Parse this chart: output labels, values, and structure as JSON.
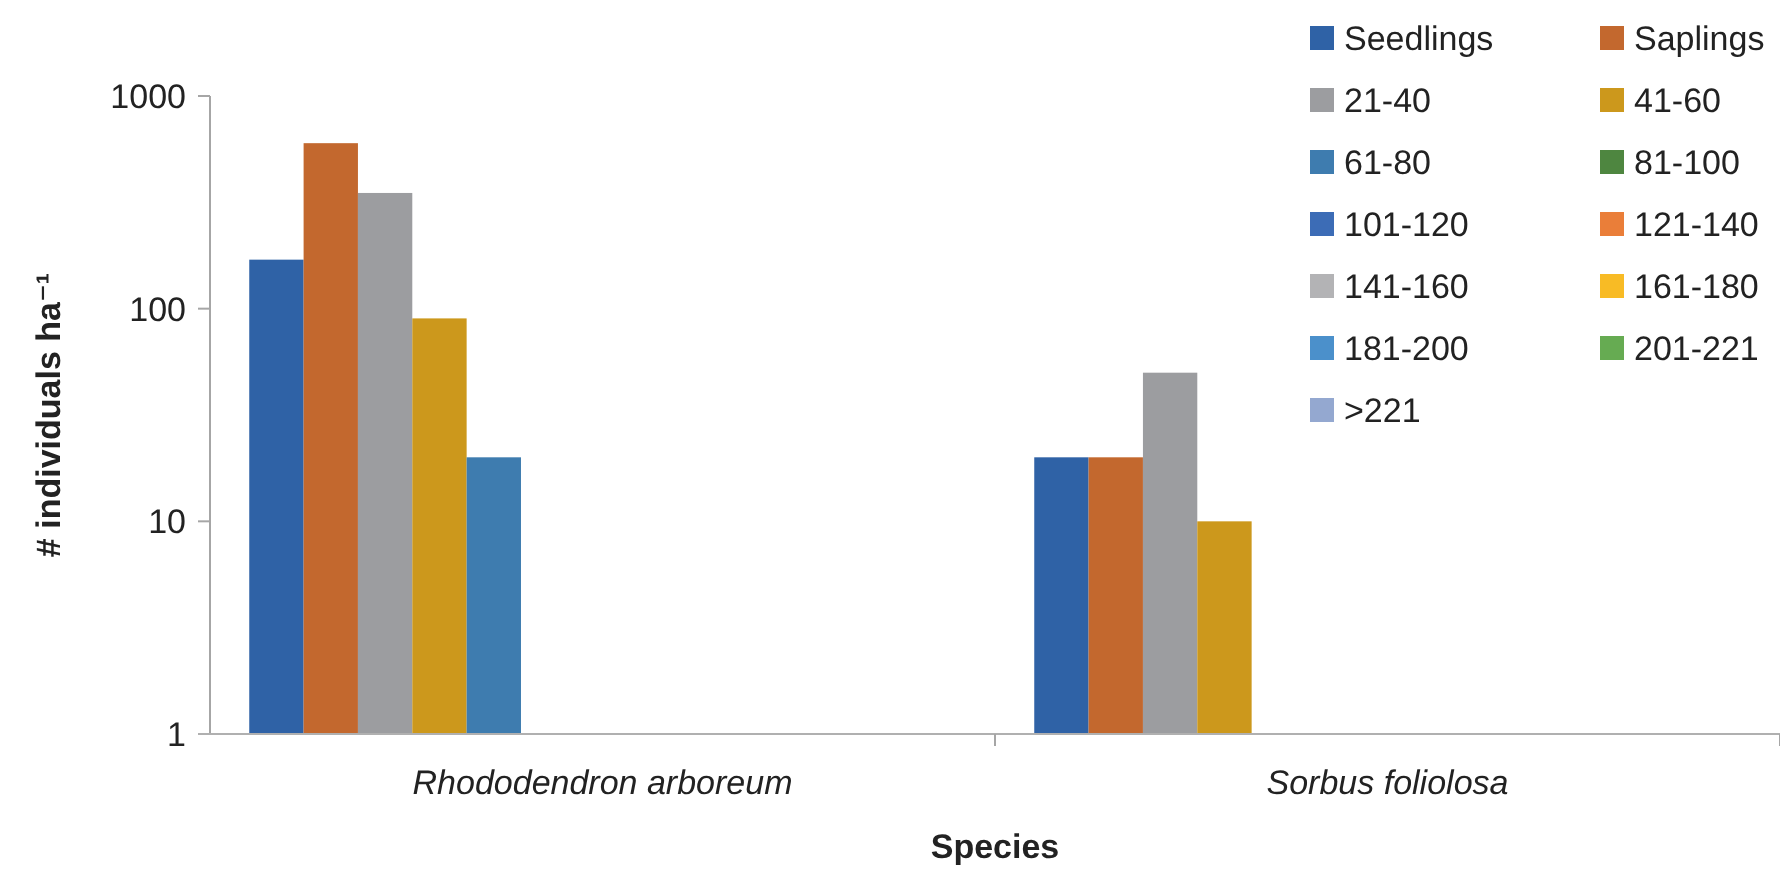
{
  "chart_data": {
    "type": "bar",
    "xlabel": "Species",
    "ylabel": "# individuals ha⁻¹",
    "categories": [
      "Rhododendron arboreum",
      "Sorbus foliolosa"
    ],
    "log": true,
    "ylim": [
      1,
      1000
    ],
    "yticks": [
      1,
      10,
      100,
      1000
    ],
    "grid": false,
    "legend": "top right",
    "series": [
      {
        "name": "Seedlings",
        "color": "#2f62a6",
        "values": [
          170,
          20
        ]
      },
      {
        "name": "Saplings",
        "color": "#c3682e",
        "values": [
          600,
          20
        ]
      },
      {
        "name": "21-40",
        "color": "#9c9da0",
        "values": [
          350,
          50
        ]
      },
      {
        "name": "41-60",
        "color": "#cc981c",
        "values": [
          90,
          10
        ]
      },
      {
        "name": "61-80",
        "color": "#3e7caf",
        "values": [
          20,
          null
        ]
      },
      {
        "name": "81-100",
        "color": "#4e8640",
        "values": [
          null,
          null
        ]
      },
      {
        "name": "101-120",
        "color": "#3c6cb6",
        "values": [
          null,
          null
        ]
      },
      {
        "name": "121-140",
        "color": "#ea7e39",
        "values": [
          null,
          null
        ]
      },
      {
        "name": "141-160",
        "color": "#b3b3b5",
        "values": [
          null,
          null
        ]
      },
      {
        "name": "161-180",
        "color": "#f8bb25",
        "values": [
          null,
          null
        ]
      },
      {
        "name": "181-200",
        "color": "#4b90cb",
        "values": [
          null,
          null
        ]
      },
      {
        "name": "201-221",
        "color": "#66ab52",
        "values": [
          null,
          null
        ]
      },
      {
        "name": ">221",
        "color": "#94a8d0",
        "values": [
          null,
          null
        ]
      }
    ]
  }
}
